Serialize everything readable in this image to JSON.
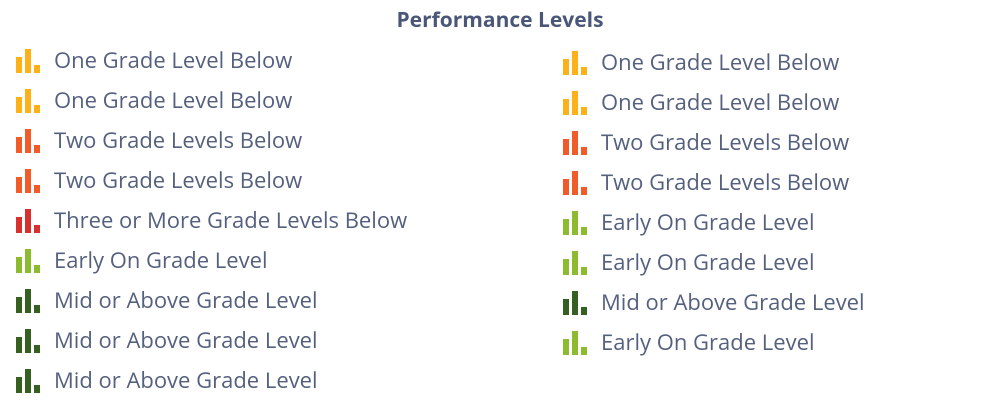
{
  "title": "Performance Levels",
  "columns": [
    [
      {
        "label": "One Grade Level Below",
        "color": "#fbb117"
      },
      {
        "label": "One Grade Level Below",
        "color": "#fbb117"
      },
      {
        "label": "Two Grade Levels Below",
        "color": "#f15a29"
      },
      {
        "label": "Two Grade Levels Below",
        "color": "#f15a29"
      },
      {
        "label": "Three or More Grade Levels Below",
        "color": "#d7302e"
      },
      {
        "label": "Early On Grade Level",
        "color": "#8dbb2f"
      },
      {
        "label": "Mid or Above Grade Level",
        "color": "#35601f"
      },
      {
        "label": "Mid or Above Grade Level",
        "color": "#35601f"
      },
      {
        "label": "Mid or Above Grade Level",
        "color": "#35601f"
      }
    ],
    [
      {
        "label": "One Grade Level Below",
        "color": "#fbb117"
      },
      {
        "label": "One Grade Level Below",
        "color": "#fbb117"
      },
      {
        "label": "Two Grade Levels Below",
        "color": "#f15a29"
      },
      {
        "label": "Two Grade Levels Below",
        "color": "#f15a29"
      },
      {
        "label": "Early On Grade Level",
        "color": "#8dbb2f"
      },
      {
        "label": "Early On Grade Level",
        "color": "#8dbb2f"
      },
      {
        "label": "Mid or Above Grade Level",
        "color": "#35601f"
      },
      {
        "label": "Early On Grade Level",
        "color": "#8dbb2f"
      }
    ]
  ]
}
